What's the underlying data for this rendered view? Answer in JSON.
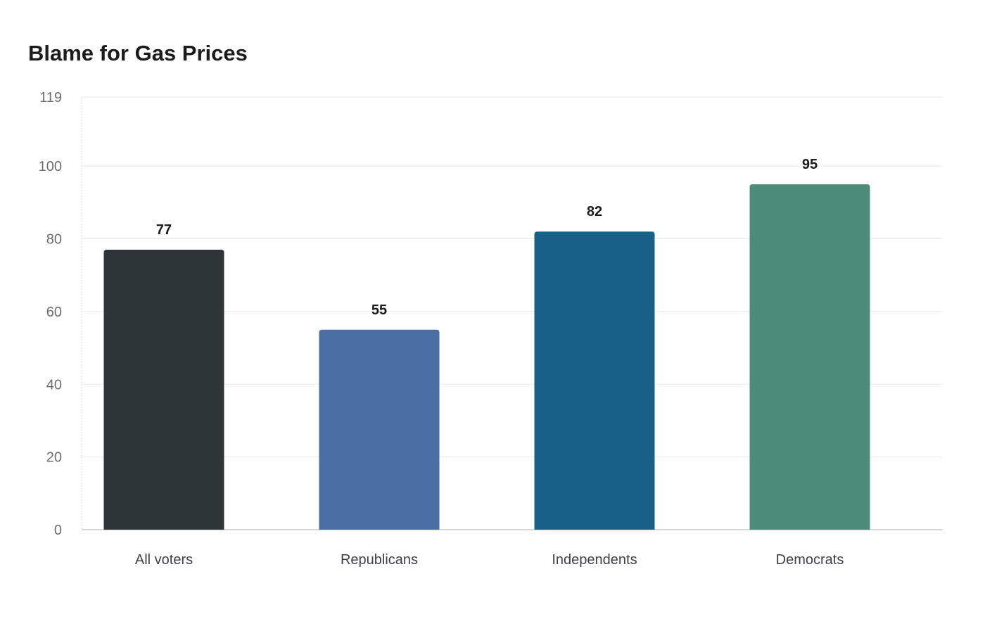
{
  "chart_data": {
    "type": "bar",
    "title": "Blame for Gas Prices",
    "categories": [
      "All voters",
      "Republicans",
      "Independents",
      "Democrats"
    ],
    "values": [
      77,
      55,
      82,
      95
    ],
    "colors": [
      "#2e3538",
      "#4a6fa5",
      "#186087",
      "#4e8c7a"
    ],
    "y_ticks": [
      0,
      20,
      40,
      60,
      80,
      100,
      119
    ],
    "ylim": [
      0,
      119
    ],
    "xlabel": "",
    "ylabel": "",
    "grid": true,
    "data_labels": true
  }
}
